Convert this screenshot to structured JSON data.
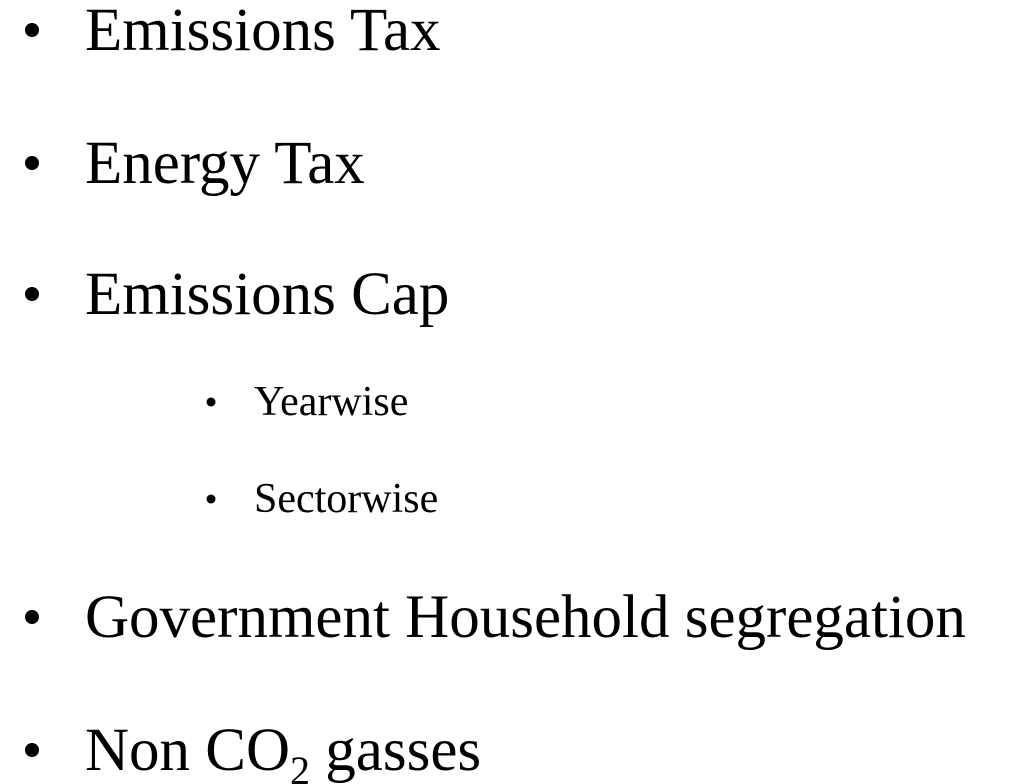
{
  "items": [
    {
      "text": "Emissions Tax"
    },
    {
      "text": "Energy Tax"
    },
    {
      "text": "Emissions Cap",
      "subitems": [
        "Yearwise",
        "Sectorwise"
      ]
    },
    {
      "text": "Government Household segregation"
    },
    {
      "text": "Non CO",
      "subscript": "2",
      "tail": " gasses"
    }
  ]
}
